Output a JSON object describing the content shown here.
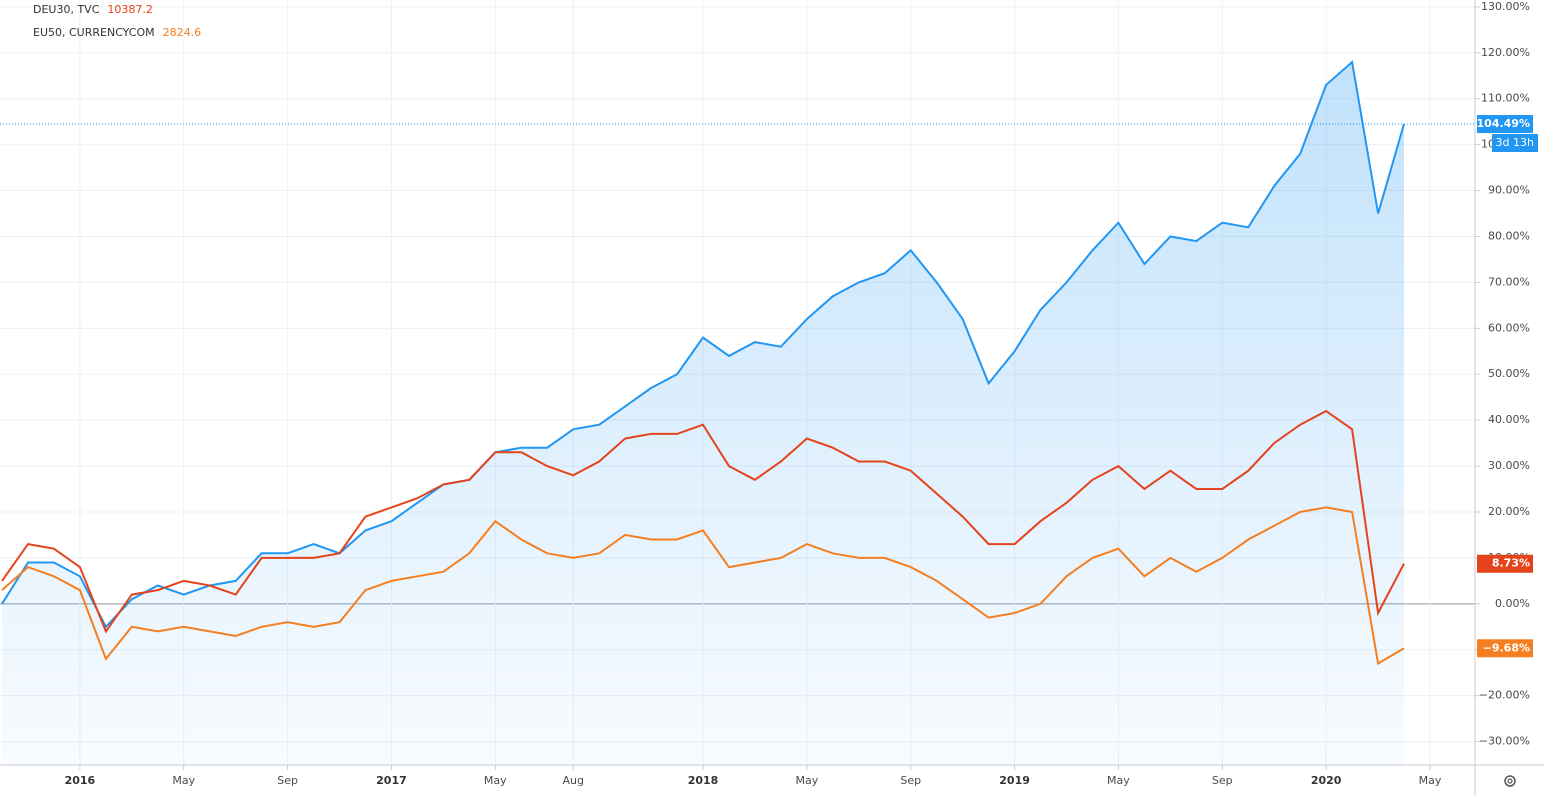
{
  "chart_data": {
    "type": "line",
    "x": [
      "2015-10",
      "2015-11",
      "2015-12",
      "2016-01",
      "2016-02",
      "2016-03",
      "2016-04",
      "2016-05",
      "2016-06",
      "2016-07",
      "2016-08",
      "2016-09",
      "2016-10",
      "2016-11",
      "2016-12",
      "2017-01",
      "2017-02",
      "2017-03",
      "2017-04",
      "2017-05",
      "2017-06",
      "2017-07",
      "2017-08",
      "2017-09",
      "2017-10",
      "2017-11",
      "2017-12",
      "2018-01",
      "2018-02",
      "2018-03",
      "2018-04",
      "2018-05",
      "2018-06",
      "2018-07",
      "2018-08",
      "2018-09",
      "2018-10",
      "2018-11",
      "2018-12",
      "2019-01",
      "2019-02",
      "2019-03",
      "2019-04",
      "2019-05",
      "2019-06",
      "2019-07",
      "2019-08",
      "2019-09",
      "2019-10",
      "2019-11",
      "2019-12",
      "2020-01",
      "2020-02",
      "2020-03",
      "2020-04"
    ],
    "series": [
      {
        "color": "#2196f3",
        "area": true,
        "last_label": "104.49%",
        "values": [
          0,
          9,
          9,
          6,
          -5,
          1,
          4,
          2,
          4,
          5,
          11,
          11,
          13,
          11,
          16,
          18,
          22,
          26,
          27,
          33,
          34,
          34,
          38,
          39,
          43,
          47,
          50,
          58,
          54,
          57,
          56,
          62,
          67,
          70,
          72,
          77,
          70,
          62,
          48,
          55,
          64,
          70,
          77,
          83,
          74,
          80,
          79,
          83,
          82,
          91,
          98,
          113,
          118,
          85,
          104.49
        ]
      },
      {
        "name": "DEU30, TVC",
        "last_price": 10387.2,
        "color": "#e4431b",
        "last_label": "8.73%",
        "values": [
          5,
          13,
          12,
          8,
          -6,
          2,
          3,
          5,
          4,
          2,
          10,
          10,
          10,
          11,
          19,
          21,
          23,
          26,
          27,
          33,
          33,
          30,
          28,
          31,
          36,
          37,
          37,
          39,
          30,
          27,
          31,
          36,
          34,
          31,
          31,
          29,
          24,
          19,
          13,
          13,
          18,
          22,
          27,
          30,
          25,
          29,
          25,
          25,
          29,
          35,
          39,
          42,
          38,
          -2,
          8.73
        ]
      },
      {
        "name": "EU50, CURRENCYCOM",
        "last_price": 2824.6,
        "color": "#f57f20",
        "last_label": "−9.68%",
        "values": [
          3,
          8,
          6,
          3,
          -12,
          -5,
          -6,
          -5,
          -6,
          -7,
          -5,
          -4,
          -5,
          -4,
          3,
          5,
          6,
          7,
          11,
          18,
          14,
          11,
          10,
          11,
          15,
          14,
          14,
          16,
          8,
          9,
          10,
          13,
          11,
          10,
          10,
          8,
          5,
          1,
          -3,
          -2,
          0,
          6,
          10,
          12,
          6,
          10,
          7,
          10,
          14,
          17,
          20,
          21,
          20,
          -13,
          -9.68
        ]
      }
    ],
    "countdown": "3d 13h",
    "xlim": [
      "2015-10",
      "2020-05"
    ],
    "xticks": [
      {
        "value": "2016-01",
        "label": "2016"
      },
      {
        "value": "2016-05",
        "label": "May"
      },
      {
        "value": "2016-09",
        "label": "Sep"
      },
      {
        "value": "2017-01",
        "label": "2017"
      },
      {
        "value": "2017-05",
        "label": "May"
      },
      {
        "value": "2017-08",
        "label": "Aug"
      },
      {
        "value": "2018-01",
        "label": "2018"
      },
      {
        "value": "2018-05",
        "label": "May"
      },
      {
        "value": "2018-09",
        "label": "Sep"
      },
      {
        "value": "2019-01",
        "label": "2019"
      },
      {
        "value": "2019-05",
        "label": "May"
      },
      {
        "value": "2019-09",
        "label": "Sep"
      },
      {
        "value": "2020-01",
        "label": "2020"
      },
      {
        "value": "2020-05",
        "label": "May"
      }
    ],
    "ylim": [
      -35.1,
      131.5
    ],
    "yticks": [
      {
        "value": -30,
        "label": "−30.00%"
      },
      {
        "value": -20,
        "label": "−20.00%"
      },
      {
        "value": -10,
        "label": "−10.00%"
      },
      {
        "value": 0,
        "label": "0.00%"
      },
      {
        "value": 10,
        "label": "10.00%"
      },
      {
        "value": 20,
        "label": "20.00%"
      },
      {
        "value": 30,
        "label": "30.00%"
      },
      {
        "value": 40,
        "label": "40.00%"
      },
      {
        "value": 50,
        "label": "50.00%"
      },
      {
        "value": 60,
        "label": "60.00%"
      },
      {
        "value": 70,
        "label": "70.00%"
      },
      {
        "value": 80,
        "label": "80.00%"
      },
      {
        "value": 90,
        "label": "90.00%"
      },
      {
        "value": 100,
        "label": "100.00%"
      },
      {
        "value": 110,
        "label": "110.00%"
      },
      {
        "value": 120,
        "label": "120.00%"
      },
      {
        "value": 130,
        "label": "130.00%"
      }
    ],
    "grid": true
  }
}
